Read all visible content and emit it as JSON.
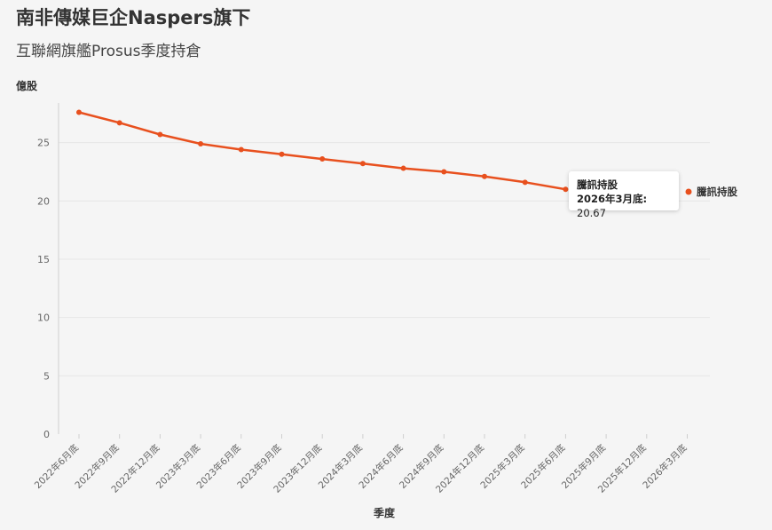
{
  "header": {
    "title": "南非傳媒巨企Naspers旗下",
    "subtitle": "互聯網旗艦Prosus季度持倉"
  },
  "colors": {
    "series": "#e8501e",
    "grid": "#e6e6e6",
    "background": "#f5f5f5"
  },
  "tooltip": {
    "series_name": "騰訊持股",
    "label": "2026年3月底:",
    "value": "20.67"
  },
  "chart_data": {
    "type": "line",
    "ylabel": "億股",
    "xlabel": "季度",
    "ylim": [
      0,
      30
    ],
    "yticks": [
      0,
      5,
      10,
      15,
      20,
      25
    ],
    "grid": true,
    "categories": [
      "2022年6月底",
      "2022年9月底",
      "2022年12月底",
      "2023年3月底",
      "2023年6月底",
      "2023年9月底",
      "2023年12月底",
      "2024年3月底",
      "2024年6月底",
      "2024年9月底",
      "2024年12月底",
      "2025年3月底",
      "2025年6月底",
      "2025年9月底",
      "2025年12月底",
      "2026年3月底"
    ],
    "series": [
      {
        "name": "騰訊持股",
        "values": [
          27.6,
          26.7,
          25.7,
          24.9,
          24.4,
          24.0,
          23.6,
          23.2,
          22.8,
          22.5,
          22.1,
          21.6,
          21.0,
          null,
          null,
          20.67
        ]
      }
    ]
  }
}
